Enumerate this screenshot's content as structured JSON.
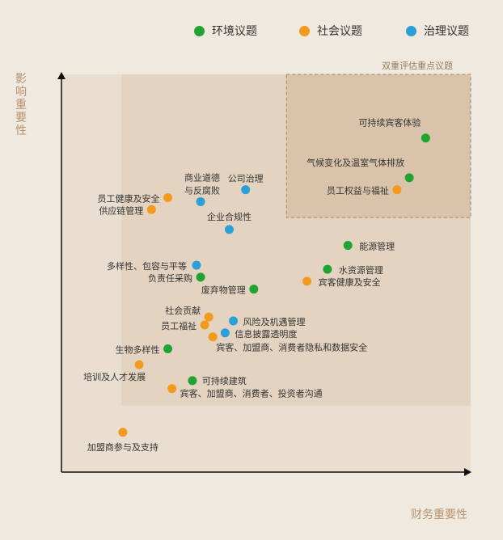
{
  "legend": [
    {
      "label": "环境议题",
      "color": "#1fa333"
    },
    {
      "label": "社会议题",
      "color": "#f39a1e"
    },
    {
      "label": "治理议题",
      "color": "#2a9fd8"
    }
  ],
  "axes": {
    "ylabel": "影响重要性",
    "xlabel": "财务重要性"
  },
  "zone_label": "双重评估重点议题",
  "chart_data": {
    "type": "scatter",
    "xlabel": "财务重要性",
    "ylabel": "影响重要性",
    "xlim": [
      0,
      100
    ],
    "ylim": [
      0,
      100
    ],
    "grid": false,
    "legend_position": "top",
    "highlight_zone": {
      "label": "双重评估重点议题",
      "x": [
        55,
        100
      ],
      "y": [
        64,
        100
      ]
    },
    "series": [
      {
        "name": "环境议题",
        "color": "#1fa333",
        "points": [
          {
            "label": "可持续宾客体验",
            "x": 89,
            "y": 84
          },
          {
            "label": "气候变化及温室气体排放",
            "x": 85,
            "y": 74
          },
          {
            "label": "能源管理",
            "x": 70,
            "y": 57
          },
          {
            "label": "水资源管理",
            "x": 65,
            "y": 51
          },
          {
            "label": "负责任采购",
            "x": 34,
            "y": 49
          },
          {
            "label": "废弃物管理",
            "x": 47,
            "y": 46
          },
          {
            "label": "生物多样性",
            "x": 26,
            "y": 31
          },
          {
            "label": "可持续建筑",
            "x": 32,
            "y": 23
          }
        ]
      },
      {
        "name": "社会议题",
        "color": "#f39a1e",
        "points": [
          {
            "label": "员工权益与福祉",
            "x": 82,
            "y": 71
          },
          {
            "label": "员工健康及安全",
            "x": 26,
            "y": 69
          },
          {
            "label": "供应链管理",
            "x": 22,
            "y": 66
          },
          {
            "label": "宾客健康及安全",
            "x": 60,
            "y": 48
          },
          {
            "label": "社会贡献",
            "x": 36,
            "y": 39
          },
          {
            "label": "员工福祉",
            "x": 35,
            "y": 37
          },
          {
            "label": "宾客、加盟商、消费者隐私和数据安全",
            "x": 37,
            "y": 34
          },
          {
            "label": "培训及人才发展",
            "x": 19,
            "y": 27
          },
          {
            "label": "宾客、加盟商、消费者、投资者沟通",
            "x": 27,
            "y": 21
          },
          {
            "label": "加盟商参与及支持",
            "x": 15,
            "y": 10
          }
        ]
      },
      {
        "name": "治理议题",
        "color": "#2a9fd8",
        "points": [
          {
            "label": "公司治理",
            "x": 45,
            "y": 71
          },
          {
            "label": "商业道德与反腐败",
            "x": 34,
            "y": 68
          },
          {
            "label": "企业合规性",
            "x": 41,
            "y": 61
          },
          {
            "label": "多样性、包容与平等",
            "x": 33,
            "y": 52
          },
          {
            "label": "风险及机遇管理",
            "x": 42,
            "y": 38
          },
          {
            "label": "信息披露透明度",
            "x": 40,
            "y": 35
          }
        ]
      }
    ]
  }
}
